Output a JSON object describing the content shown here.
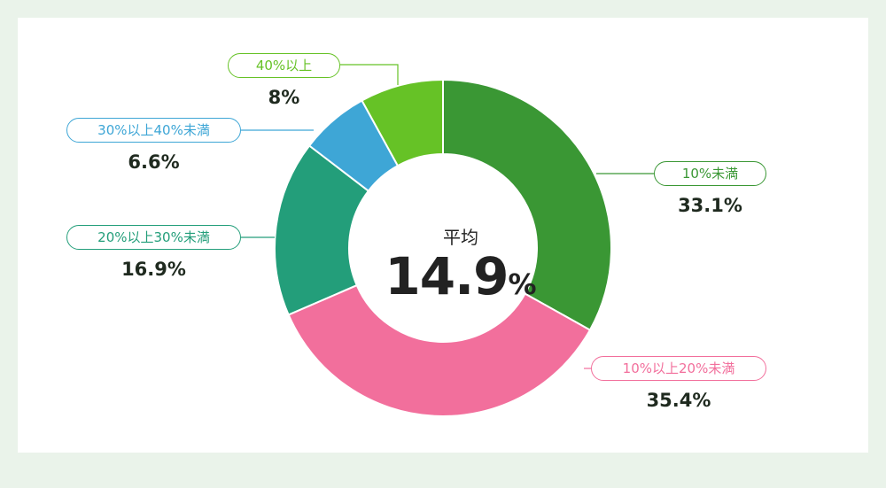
{
  "chart_data": {
    "type": "pie",
    "center": {
      "title": "平均",
      "value": "14.9",
      "unit": "%"
    },
    "slices": [
      {
        "label": "10%未満",
        "value": 33.1,
        "display": "33.1%",
        "color": "#3a9734"
      },
      {
        "label": "10%以上20%未満",
        "value": 35.4,
        "display": "35.4%",
        "color": "#f26f9c"
      },
      {
        "label": "20%以上30%未満",
        "value": 16.9,
        "display": "16.9%",
        "color": "#239e7a"
      },
      {
        "label": "30%以上40%未満",
        "value": 6.6,
        "display": "6.6%",
        "color": "#3ea6d6"
      },
      {
        "label": "40%以上",
        "value": 8,
        "display": "8%",
        "color": "#66c226"
      }
    ]
  }
}
